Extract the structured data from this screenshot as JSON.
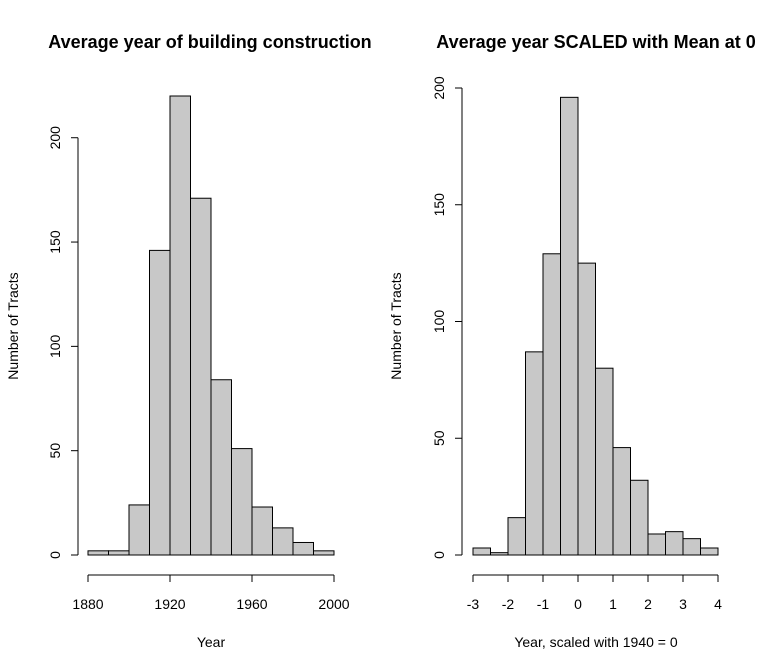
{
  "chart_data": [
    {
      "type": "bar",
      "title": "Average year of building construction",
      "xlabel": "Year",
      "ylabel": "Number of Tracts",
      "bin_edges": [
        1880,
        1890,
        1900,
        1910,
        1920,
        1930,
        1940,
        1950,
        1960,
        1970,
        1980,
        1990,
        2000
      ],
      "values": [
        2,
        2,
        24,
        146,
        220,
        171,
        84,
        51,
        23,
        13,
        6,
        2
      ],
      "xticks": [
        "1880",
        "1920",
        "1960",
        "2000"
      ],
      "yticks": [
        "0",
        "50",
        "100",
        "150",
        "200"
      ],
      "xlim": [
        1880,
        2000
      ],
      "ylim": [
        0,
        220
      ]
    },
    {
      "type": "bar",
      "title": "Average year SCALED with Mean at 0",
      "xlabel": "Year, scaled with 1940 = 0",
      "ylabel": "Number of Tracts",
      "bin_edges": [
        -3,
        -2.5,
        -2,
        -1.5,
        -1,
        -0.5,
        0,
        0.5,
        1,
        1.5,
        2,
        2.5,
        3,
        3.5,
        4
      ],
      "values": [
        3,
        1,
        16,
        87,
        129,
        196,
        125,
        80,
        46,
        32,
        9,
        10,
        7,
        3
      ],
      "xticks": [
        "-3",
        "-2",
        "-1",
        "0",
        "1",
        "2",
        "3",
        "4"
      ],
      "yticks": [
        "0",
        "50",
        "100",
        "150",
        "200"
      ],
      "xlim": [
        -3,
        4
      ],
      "ylim": [
        0,
        200
      ]
    }
  ]
}
